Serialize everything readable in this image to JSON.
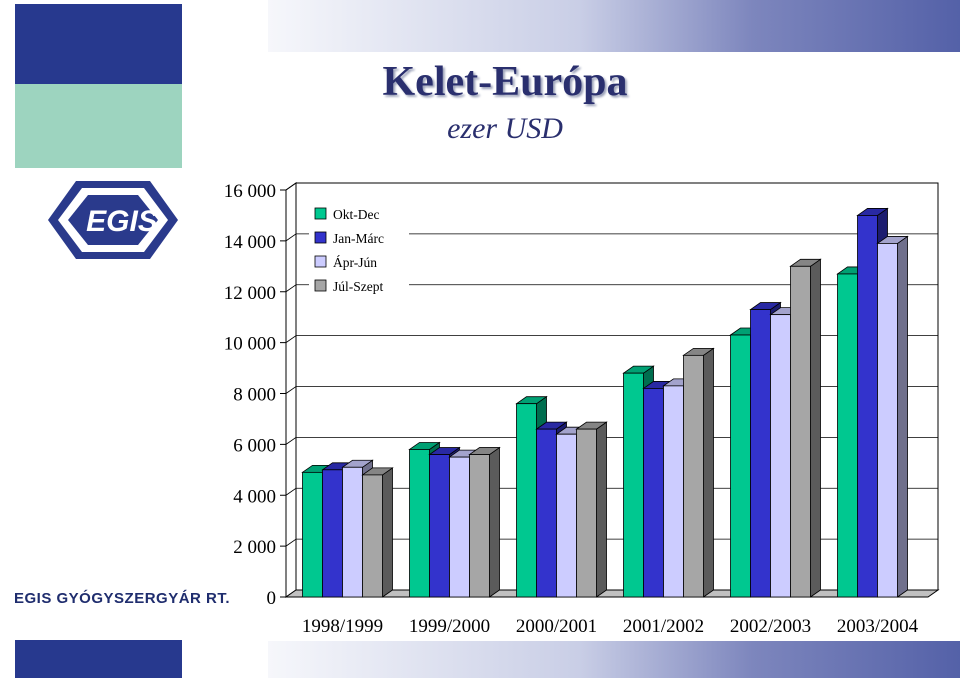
{
  "header": {
    "title": "Kelet-Európa",
    "subtitle": "ezer USD"
  },
  "brand": {
    "logo_text": "EGIS",
    "company_name": "EGIS GYÓGYSZERGYÁR RT.",
    "colors": {
      "navy": "#2a3a8c",
      "teal": "#9fd6c2",
      "frame": "#000000"
    }
  },
  "chart_data": {
    "type": "bar",
    "title": "Kelet-Európa",
    "subtitle": "ezer USD",
    "categories": [
      "1998/1999",
      "1999/2000",
      "2000/2001",
      "2001/2002",
      "2002/2003",
      "2003/2004"
    ],
    "series": [
      {
        "name": "Okt-Dec",
        "color": "#00c890",
        "values": [
          4900,
          5800,
          7600,
          8800,
          10300,
          12700
        ]
      },
      {
        "name": "Jan-Márc",
        "color": "#3333cc",
        "values": [
          5000,
          5600,
          6600,
          8200,
          11300,
          15000
        ]
      },
      {
        "name": "Ápr-Jún",
        "color": "#ccccff",
        "values": [
          5100,
          5500,
          6400,
          8300,
          11100,
          13900
        ]
      },
      {
        "name": "Júl-Szept",
        "color": "#a6a6a6",
        "values": [
          4800,
          5600,
          6600,
          9500,
          13000,
          0
        ]
      }
    ],
    "y_ticks": [
      "0",
      "2 000",
      "4 000",
      "6 000",
      "8 000",
      "10 000",
      "12 000",
      "14 000",
      "16 000"
    ],
    "ylim": [
      0,
      16000
    ],
    "grid": true,
    "legend_position": "top-left"
  }
}
